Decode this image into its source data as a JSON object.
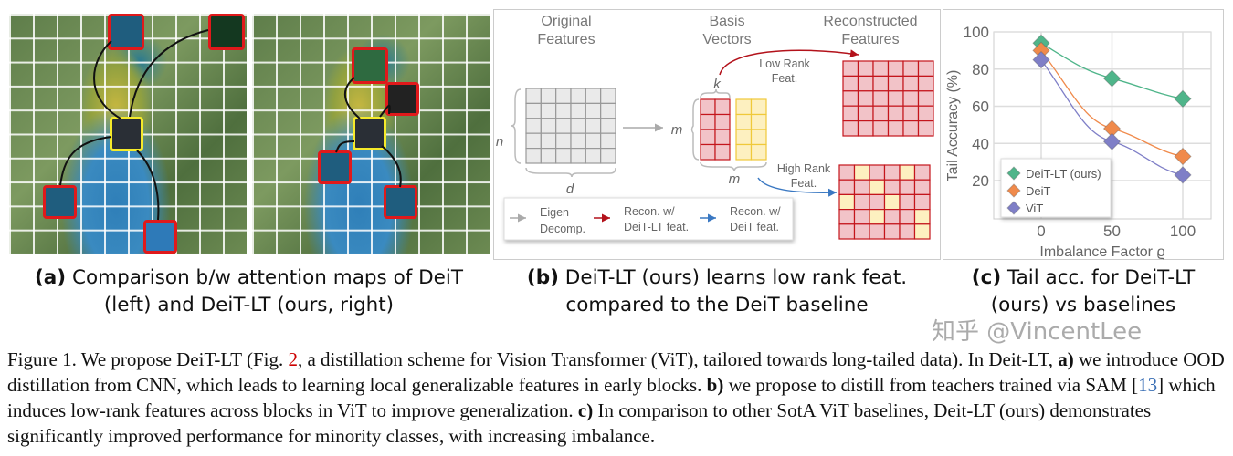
{
  "panel_a": {
    "label": "(a)",
    "caption": "Comparison b/w attention maps of DeiT (left) and DeiT-LT (ours, right)"
  },
  "panel_b": {
    "label": "(b)",
    "caption": "DeiT-LT (ours) learns low rank feat. compared to the DeiT baseline",
    "original_features": "Original Features",
    "basis_vectors": "Basis Vectors",
    "reconstructed_features": "Reconstructed Features",
    "dim_n": "n",
    "dim_d": "d",
    "dim_m": "m",
    "dim_k": "k",
    "low_rank": "Low Rank Feat.",
    "high_rank": "High Rank Feat.",
    "legend": [
      {
        "label1": "Eigen",
        "label2": "Decomp.",
        "color": "#aaaaaa"
      },
      {
        "label1": "Recon. w/",
        "label2": "DeiT-LT feat.",
        "color": "#b3121b"
      },
      {
        "label1": "Recon. w/",
        "label2": "DeiT feat.",
        "color": "#3a78c2"
      }
    ],
    "colors": {
      "low_rank": "#f2c3c8",
      "high_rank_cell": "#fdf0c0",
      "grid_red": "#c4151c",
      "basis_yellow": "#f0c93a"
    }
  },
  "panel_c": {
    "label": "(c)",
    "caption": "Tail acc. for DeiT-LT (ours) vs baselines"
  },
  "chart_data": {
    "type": "line",
    "x": [
      0,
      50,
      100
    ],
    "xlabel": "Imbalance Factor ϱ",
    "ylabel": "Tail Accuracy (%)",
    "xticks": [
      "0",
      "50",
      "100"
    ],
    "yticks": [
      "20",
      "40",
      "60",
      "80",
      "100"
    ],
    "ylim": [
      0,
      100
    ],
    "xlim": [
      -35,
      120
    ],
    "grid": true,
    "legend_position": "bottom-left",
    "marker": "diamond",
    "series": [
      {
        "name": "DeiT-LT (ours)",
        "values": [
          94,
          75,
          64
        ],
        "color": "#4fb58a"
      },
      {
        "name": "DeiT",
        "values": [
          90,
          48,
          33
        ],
        "color": "#f08a4b"
      },
      {
        "name": "ViT",
        "values": [
          85,
          41,
          23
        ],
        "color": "#7f7fc7"
      }
    ]
  },
  "figure_caption": {
    "prefix": "Figure 1. We propose DeiT-LT (Fig. ",
    "fig_ref": "2",
    "part1": ", a distillation scheme for Vision Transformer (ViT), tailored towards long-tailed data). In Deit-LT, ",
    "a": "a)",
    "part2": " we introduce OOD distillation from CNN, which leads to learning local generalizable features in early blocks. ",
    "b": "b)",
    "part3": " we propose to distill from teachers trained via SAM [",
    "cite": "13",
    "part4": "] which induces low-rank features across blocks in ViT to improve generalization. ",
    "c": "c)",
    "part5": " In comparison to other SotA ViT baselines, Deit-LT (ours) demonstrates significantly improved performance for minority classes, with increasing imbalance."
  },
  "watermark": "知乎 @VincentLee"
}
